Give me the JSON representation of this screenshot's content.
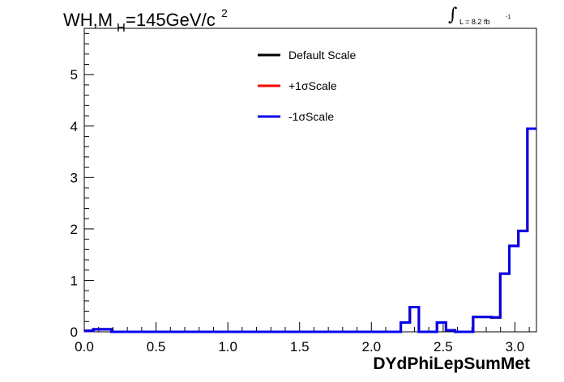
{
  "title": {
    "main": "WH,M",
    "subscript": "H",
    "rest": "=145GeV/c",
    "superscript": "2"
  },
  "luminosity": {
    "label": "L = 8.2 fb",
    "superscript": "-1"
  },
  "chart_data": {
    "type": "line",
    "xlabel": "DYdPhiLepSumMet",
    "ylabel": "",
    "xlim": [
      0,
      3.15
    ],
    "ylim": [
      0,
      5.9
    ],
    "xticks": [
      "0.0",
      "0.5",
      "1.0",
      "1.5",
      "2.0",
      "2.5",
      "3.0"
    ],
    "yticks": [
      "0",
      "1",
      "2",
      "3",
      "4",
      "5"
    ],
    "legend_position": "top-center",
    "bin_edges": [
      0,
      0.063,
      0.126,
      0.189,
      0.252,
      0.315,
      0.378,
      0.441,
      0.504,
      0.567,
      0.63,
      0.693,
      0.756,
      0.819,
      0.882,
      0.945,
      1.008,
      1.071,
      1.134,
      1.197,
      1.26,
      1.323,
      1.386,
      1.449,
      1.512,
      1.575,
      1.638,
      1.701,
      1.764,
      1.827,
      1.89,
      1.953,
      2.016,
      2.079,
      2.142,
      2.205,
      2.268,
      2.331,
      2.394,
      2.457,
      2.52,
      2.583,
      2.646,
      2.709,
      2.772,
      2.835,
      2.898,
      2.961,
      3.024,
      3.087,
      3.15
    ],
    "series": [
      {
        "name": "Default Scale",
        "color": "#000000",
        "values": [
          0.02,
          0.05,
          0.05,
          0,
          0,
          0,
          0,
          0,
          0,
          0,
          0,
          0,
          0,
          0,
          0,
          0,
          0,
          0,
          0,
          0,
          0,
          0,
          0,
          0,
          0,
          0,
          0,
          0,
          0,
          0,
          0,
          0,
          0,
          0,
          0,
          0.18,
          0.48,
          0,
          0,
          0.18,
          0.03,
          0,
          0,
          0.29,
          0.29,
          0.28,
          1.13,
          1.67,
          1.96,
          3.95
        ]
      },
      {
        "name": "+1σScale",
        "color": "#ff0000",
        "values": [
          0.02,
          0.05,
          0.05,
          0,
          0,
          0,
          0,
          0,
          0,
          0,
          0,
          0,
          0,
          0,
          0,
          0,
          0,
          0,
          0,
          0,
          0,
          0,
          0,
          0,
          0,
          0,
          0,
          0,
          0,
          0,
          0,
          0,
          0,
          0,
          0,
          0.18,
          0.48,
          0,
          0,
          0.18,
          0.03,
          0,
          0,
          0.29,
          0.29,
          0.28,
          1.13,
          1.67,
          1.96,
          3.95
        ]
      },
      {
        "name": "-1σScale",
        "color": "#0000ee",
        "values": [
          0.02,
          0.05,
          0.05,
          0,
          0,
          0,
          0,
          0,
          0,
          0,
          0,
          0,
          0,
          0,
          0,
          0,
          0,
          0,
          0,
          0,
          0,
          0,
          0,
          0,
          0,
          0,
          0,
          0,
          0,
          0,
          0,
          0,
          0,
          0,
          0,
          0.18,
          0.48,
          0,
          0,
          0.18,
          0.03,
          0,
          0,
          0.29,
          0.29,
          0.28,
          1.13,
          1.67,
          1.96,
          3.95
        ]
      }
    ]
  }
}
